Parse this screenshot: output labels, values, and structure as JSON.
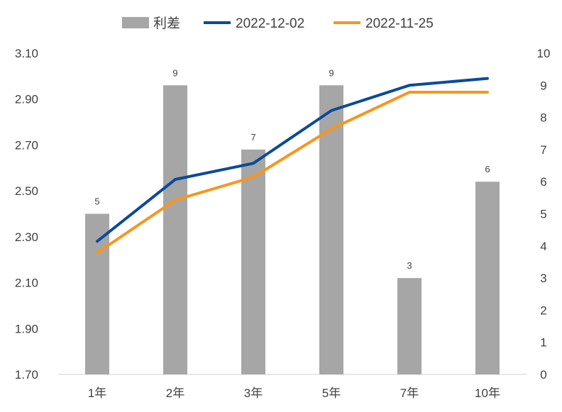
{
  "chart_data": {
    "type": "bar+line",
    "categories": [
      "1年",
      "2年",
      "3年",
      "5年",
      "7年",
      "10年"
    ],
    "bar_series": {
      "name": "利差",
      "values": [
        5,
        9,
        7,
        9,
        3,
        6
      ],
      "axis": "right",
      "color": "#a6a6a6"
    },
    "line_series": [
      {
        "name": "2022-12-02",
        "values": [
          2.28,
          2.55,
          2.62,
          2.85,
          2.96,
          2.99
        ],
        "axis": "left",
        "color": "#0b4a9a"
      },
      {
        "name": "2022-11-25",
        "values": [
          2.23,
          2.46,
          2.56,
          2.77,
          2.93,
          2.93
        ],
        "axis": "left",
        "color": "#f7961c"
      }
    ],
    "left_axis": {
      "min": 1.7,
      "max": 3.1,
      "ticks": [
        "1.70",
        "1.90",
        "2.10",
        "2.30",
        "2.50",
        "2.70",
        "2.90",
        "3.10"
      ]
    },
    "right_axis": {
      "min": 0,
      "max": 10,
      "ticks": [
        "0",
        "1",
        "2",
        "3",
        "4",
        "5",
        "6",
        "7",
        "8",
        "9",
        "10"
      ]
    },
    "data_labels": [
      "5",
      "9",
      "7",
      "9",
      "3",
      "6"
    ],
    "legend": {
      "position": "top",
      "entries": [
        "利差",
        "2022-12-02",
        "2022-11-25"
      ]
    },
    "grid": false
  }
}
